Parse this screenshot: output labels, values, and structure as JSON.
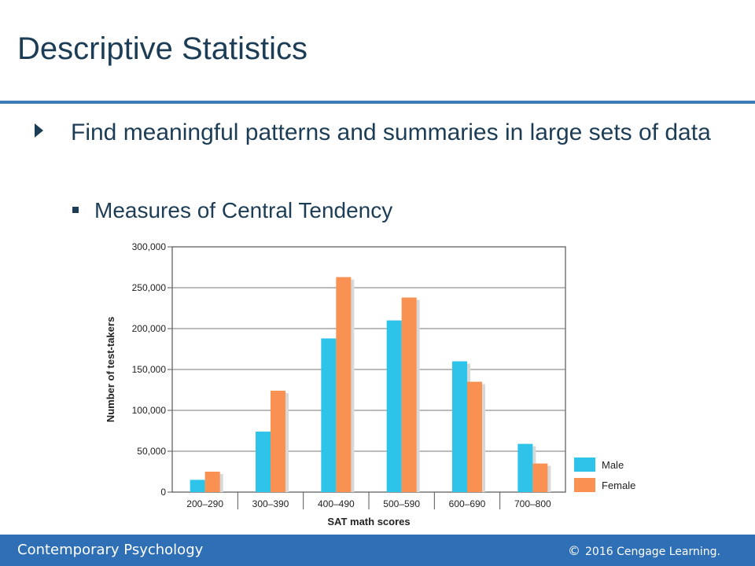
{
  "slide": {
    "title": "Descriptive Statistics",
    "bullet_main": "Find meaningful patterns and summaries in large sets of data",
    "bullet_sub": "Measures of Central Tendency"
  },
  "footer": {
    "left": "Contemporary Psychology",
    "copyright_symbol": "©",
    "right": "2016 Cengage Learning."
  },
  "colors": {
    "title": "#1c3d55",
    "rule": "#3d7ab8",
    "footer_bg": "#2f6fb5",
    "male": "#2ec4ea",
    "female": "#f99153"
  },
  "icons": {
    "bullet_main": "triangle-right-icon",
    "bullet_sub": "square-bullet-icon"
  },
  "chart_data": {
    "type": "bar",
    "categories": [
      "200–290",
      "300–390",
      "400–490",
      "500–590",
      "600–690",
      "700–800"
    ],
    "series": [
      {
        "name": "Male",
        "values": [
          15000,
          74000,
          188000,
          210000,
          160000,
          59000
        ],
        "color": "#2ec4ea"
      },
      {
        "name": "Female",
        "values": [
          25000,
          124000,
          263000,
          238000,
          135000,
          35000
        ],
        "color": "#f99153"
      }
    ],
    "xlabel": "SAT math scores",
    "ylabel": "Number of test-takers",
    "ylim": [
      0,
      300000
    ],
    "yticks": [
      0,
      50000,
      100000,
      150000,
      200000,
      250000,
      300000
    ],
    "ytick_labels": [
      "0",
      "50,000",
      "100,000",
      "150,000",
      "200,000",
      "250,000",
      "300,000"
    ],
    "grid": true,
    "legend": "right"
  }
}
